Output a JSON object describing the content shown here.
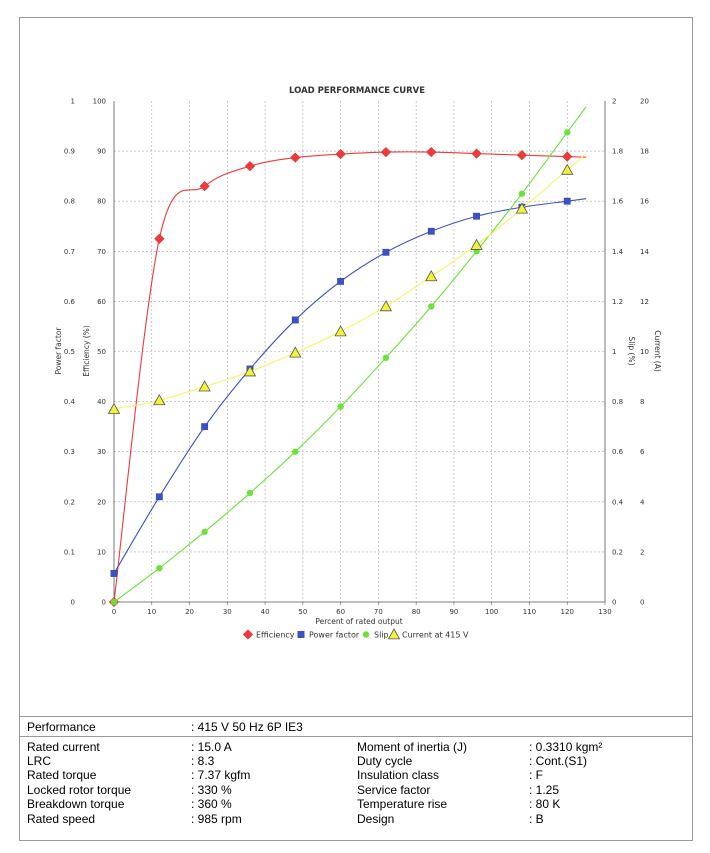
{
  "chart_data": {
    "type": "line",
    "title": "LOAD PERFORMANCE CURVE",
    "xlabel": "Percent of rated output",
    "xlim": [
      0,
      130
    ],
    "x_ticks": [
      "0",
      "10",
      "20",
      "30",
      "40",
      "50",
      "60",
      "70",
      "80",
      "90",
      "100",
      "110",
      "120",
      "130"
    ],
    "axes": {
      "power_factor": {
        "label": "Power factor",
        "ylim": [
          0,
          1
        ],
        "ticks": [
          "0",
          "0.1",
          "0.2",
          "0.3",
          "0.4",
          "0.5",
          "0.6",
          "0.7",
          "0.8",
          "0.9",
          "1"
        ]
      },
      "efficiency": {
        "label": "Efficiency (%)",
        "ylim": [
          0,
          100
        ],
        "ticks": [
          "0",
          "10",
          "20",
          "30",
          "40",
          "50",
          "60",
          "70",
          "80",
          "90",
          "100"
        ]
      },
      "slip": {
        "label": "Slip (%)",
        "ylim": [
          0,
          2
        ],
        "ticks": [
          "0",
          "0.2",
          "0.4",
          "0.6",
          "0.8",
          "1",
          "1.2",
          "1.4",
          "1.6",
          "1.8",
          "2"
        ]
      },
      "current": {
        "label": "Current (A)",
        "ylim": [
          0,
          20
        ],
        "ticks": [
          "0",
          "2",
          "4",
          "6",
          "8",
          "10",
          "12",
          "14",
          "16",
          "18",
          "20"
        ]
      }
    },
    "grid": true,
    "legend_position": "bottom",
    "series": [
      {
        "name": "Efficiency",
        "axis": "efficiency",
        "color": "#f03a3a",
        "marker": "diamond",
        "x": [
          0,
          12,
          24,
          36,
          48,
          60,
          72,
          84,
          96,
          108,
          120
        ],
        "y": [
          0,
          72.5,
          83,
          87,
          88.7,
          89.4,
          89.8,
          89.8,
          89.5,
          89.2,
          88.9
        ],
        "curve_end": 125
      },
      {
        "name": "Power factor",
        "axis": "power_factor",
        "color": "#3c50c8",
        "marker": "square",
        "x": [
          0,
          12,
          24,
          36,
          48,
          60,
          72,
          84,
          96,
          108,
          120
        ],
        "y": [
          0.057,
          0.21,
          0.35,
          0.465,
          0.563,
          0.64,
          0.698,
          0.74,
          0.77,
          0.788,
          0.8
        ],
        "curve_end": 125
      },
      {
        "name": "Slip",
        "axis": "slip",
        "color": "#6ae23a",
        "marker": "circle",
        "x": [
          0,
          12,
          24,
          36,
          48,
          60,
          72,
          84,
          96,
          108,
          120
        ],
        "y": [
          0,
          0.135,
          0.28,
          0.435,
          0.6,
          0.78,
          0.975,
          1.18,
          1.4,
          1.63,
          1.875
        ],
        "curve_end": 125
      },
      {
        "name": "Current at 415 V",
        "axis": "current",
        "color": "#f2f23a",
        "marker": "triangle",
        "x": [
          0,
          12,
          24,
          36,
          48,
          60,
          72,
          84,
          96,
          108,
          120
        ],
        "y": [
          7.7,
          8.05,
          8.6,
          9.2,
          9.95,
          10.8,
          11.8,
          13,
          14.25,
          15.7,
          17.25
        ],
        "curve_end": 125
      }
    ]
  },
  "specs": {
    "performance": {
      "label": "Performance",
      "value": ": 415 V 50 Hz 6P IE3"
    },
    "left": [
      {
        "label": "Rated current",
        "value": ": 15.0 A"
      },
      {
        "label": "LRC",
        "value": ": 8.3"
      },
      {
        "label": "Rated torque",
        "value": ": 7.37 kgfm"
      },
      {
        "label": "Locked rotor torque",
        "value": ": 330 %"
      },
      {
        "label": "Breakdown torque",
        "value": ": 360 %"
      },
      {
        "label": "Rated speed",
        "value": ": 985 rpm"
      }
    ],
    "right": [
      {
        "label": "Moment of inertia (J)",
        "value": ": 0.3310 kgm²"
      },
      {
        "label": "Duty cycle",
        "value": ": Cont.(S1)"
      },
      {
        "label": "Insulation class",
        "value": ": F"
      },
      {
        "label": "Service factor",
        "value": ": 1.25"
      },
      {
        "label": "Temperature rise",
        "value": ": 80 K"
      },
      {
        "label": "Design",
        "value": ": B"
      }
    ]
  }
}
